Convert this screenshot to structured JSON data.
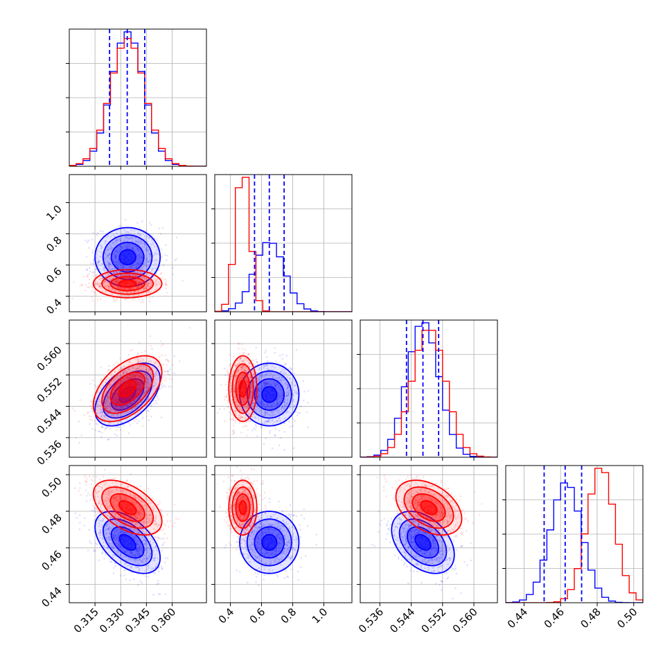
{
  "chart_data": {
    "type": "corner",
    "grid": true,
    "colors": {
      "series_a": "#0000ff",
      "series_b": "#ff0000",
      "quantile_lines": "#0000ff"
    },
    "parameters": [
      {
        "range": [
          0.3,
          0.38
        ],
        "ticks": [
          0.315,
          0.33,
          0.345,
          0.36
        ],
        "tick_labels": [
          "0.315",
          "0.330",
          "0.345",
          "0.360"
        ]
      },
      {
        "range": [
          0.3,
          1.18
        ],
        "ticks": [
          0.4,
          0.6,
          0.8,
          1.0
        ],
        "tick_labels": [
          "0.4",
          "0.6",
          "0.8",
          "1.0"
        ]
      },
      {
        "range": [
          0.531,
          0.566
        ],
        "ticks": [
          0.536,
          0.544,
          0.552,
          0.56
        ],
        "tick_labels": [
          "0.536",
          "0.544",
          "0.552",
          "0.560"
        ]
      },
      {
        "range": [
          0.43,
          0.505
        ],
        "ticks": [
          0.44,
          0.46,
          0.48,
          0.5
        ],
        "tick_labels": [
          "0.44",
          "0.46",
          "0.48",
          "0.50"
        ]
      }
    ],
    "series": [
      {
        "name": "",
        "color": "#0000ff",
        "mean": [
          0.334,
          0.65,
          0.547,
          0.463
        ],
        "std": [
          0.0095,
          0.095,
          0.004,
          0.0085
        ],
        "quantiles": [
          [
            0.3235,
            0.3338,
            0.344
          ],
          [
            0.555,
            0.65,
            0.745
          ],
          [
            0.5428,
            0.547,
            0.551
          ],
          [
            0.451,
            0.4625,
            0.4715
          ]
        ],
        "corr": [
          [
            1,
            0,
            0.5,
            -0.5
          ],
          [
            0,
            1,
            0,
            0
          ],
          [
            0.5,
            0,
            1,
            -0.4
          ],
          [
            -0.5,
            0,
            -0.4,
            1
          ]
        ]
      },
      {
        "name": "",
        "color": "#ff0000",
        "mean": [
          0.334,
          0.48,
          0.5485,
          0.482
        ],
        "std": [
          0.01,
          0.045,
          0.0042,
          0.0075
        ],
        "corr": [
          [
            1,
            0,
            0.5,
            -0.5
          ],
          [
            0,
            1,
            0,
            0
          ],
          [
            0.5,
            0,
            1,
            -0.4
          ],
          [
            -0.5,
            0,
            -0.4,
            1
          ]
        ]
      }
    ],
    "contour_levels_sigma": [
      0.5,
      1.0,
      1.5,
      2.0
    ]
  }
}
